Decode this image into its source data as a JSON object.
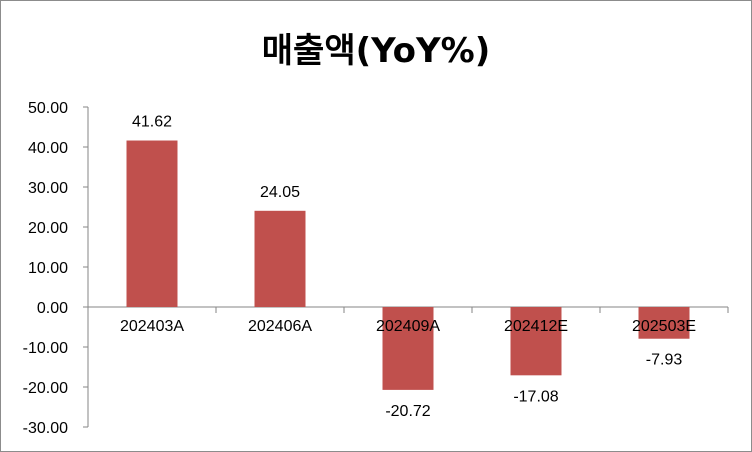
{
  "chart_data": {
    "type": "bar",
    "title": "매출액(YoY%)",
    "categories": [
      "202403A",
      "202406A",
      "202409A",
      "202412E",
      "202503E"
    ],
    "values": [
      41.62,
      24.05,
      -20.72,
      -17.08,
      -7.93
    ],
    "data_labels": [
      "41.62",
      "24.05",
      "-20.72",
      "-17.08",
      "-7.93"
    ],
    "ylim": [
      -30,
      50
    ],
    "y_ticks": [
      "50.00",
      "40.00",
      "30.00",
      "20.00",
      "10.00",
      "0.00",
      "-10.00",
      "-20.00",
      "-30.00"
    ],
    "bar_color": "#c0504d",
    "grid": false,
    "legend": "none"
  }
}
